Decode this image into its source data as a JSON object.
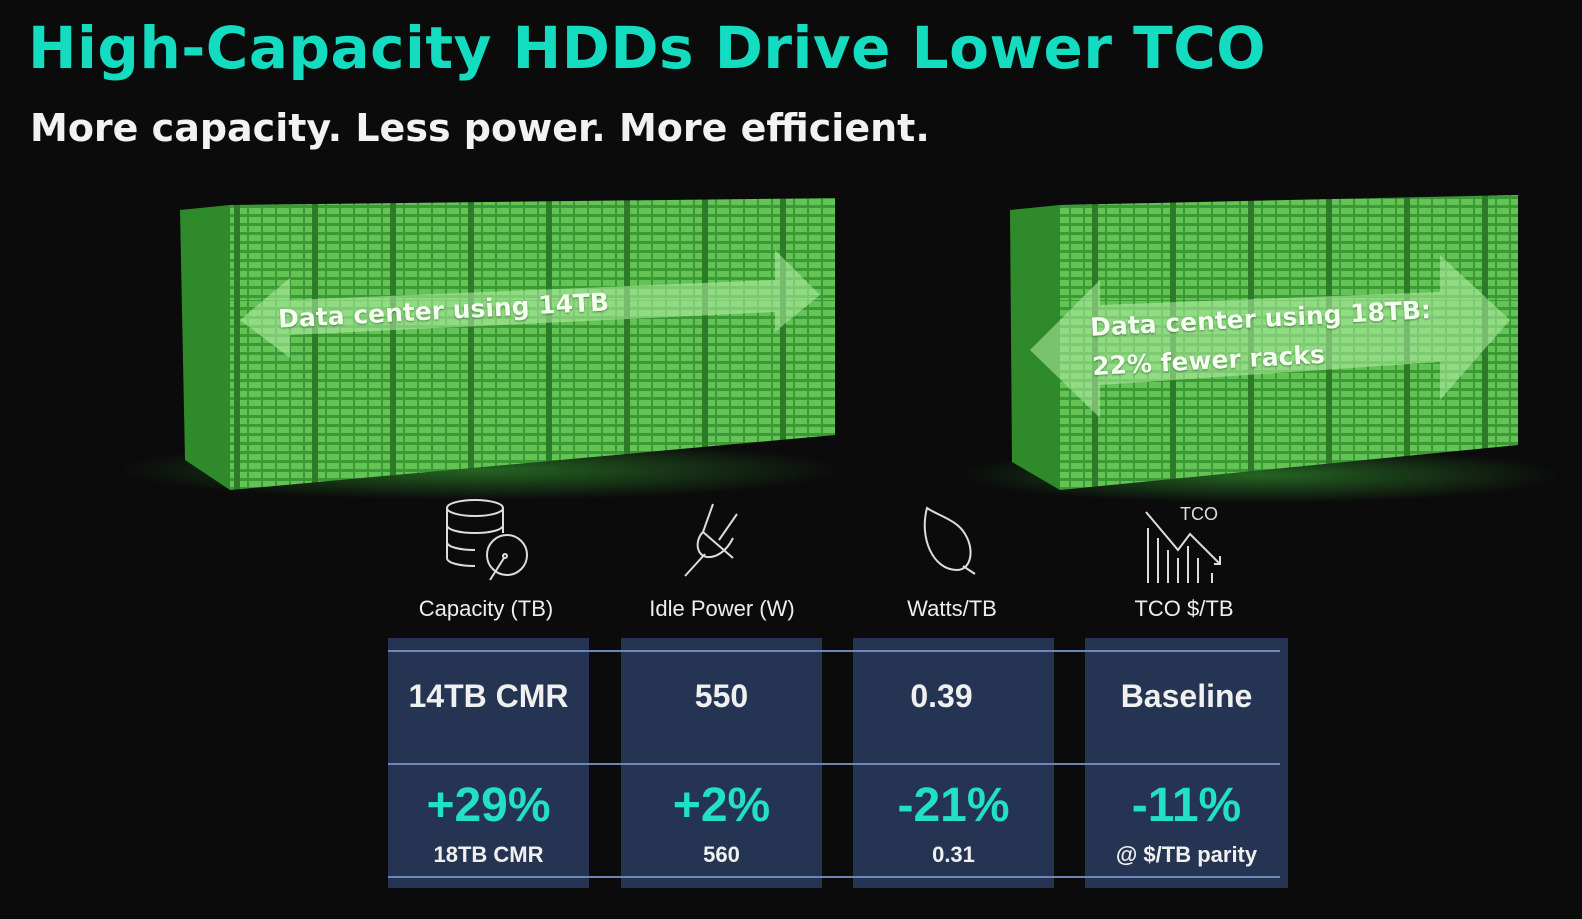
{
  "slide": {
    "title": "High-Capacity HDDs Drive Lower TCO",
    "subtitle": "More capacity. Less power. More efficient."
  },
  "racks": [
    {
      "label": "Data center using 14TB"
    },
    {
      "label_line1": "Data center using 18TB:",
      "label_line2": "22% fewer racks"
    }
  ],
  "colors": {
    "title": "#14dcc0",
    "highlight": "#22e0c4",
    "cell_bg": "#243452",
    "rack_green": "#3fa83a"
  },
  "table": {
    "columns": [
      {
        "icon": "database-disk-icon",
        "header": "Capacity (TB)",
        "baseline": "14TB CMR",
        "change": "+29%",
        "detail": "18TB CMR"
      },
      {
        "icon": "power-plug-icon",
        "header": "Idle Power (W)",
        "baseline": "550",
        "change": "+2%",
        "detail": "560"
      },
      {
        "icon": "leaf-icon",
        "header": "Watts/TB",
        "baseline": "0.39",
        "change": "-21%",
        "detail": "0.31"
      },
      {
        "icon": "tco-trend-down-icon",
        "header": "TCO $/TB",
        "icon_text": "TCO",
        "baseline": "Baseline",
        "change": "-11%",
        "detail": "@ $/TB parity"
      }
    ]
  }
}
